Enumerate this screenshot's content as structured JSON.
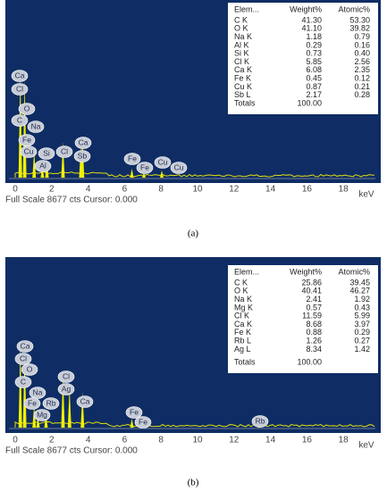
{
  "panels": [
    {
      "caption": "(a)",
      "table": {
        "header": [
          "Elem...",
          "Weight%",
          "Atomic%"
        ],
        "rows": [
          [
            "C K",
            "41.30",
            "53.30"
          ],
          [
            "O K",
            "41.10",
            "39.82"
          ],
          [
            "Na K",
            "1.18",
            "0.79"
          ],
          [
            "Al K",
            "0.29",
            "0.16"
          ],
          [
            "Si K",
            "0.73",
            "0.40"
          ],
          [
            "Cl K",
            "5.85",
            "2.56"
          ],
          [
            "Ca K",
            "6.08",
            "2.35"
          ],
          [
            "Fe K",
            "0.45",
            "0.12"
          ],
          [
            "Cu K",
            "0.87",
            "0.21"
          ],
          [
            "Sb L",
            "2.17",
            "0.28"
          ]
        ],
        "totals": [
          "Totals",
          "100.00"
        ]
      },
      "peak_labels": [
        "Ca",
        "Cl",
        "O",
        "C",
        "Na",
        "Fe",
        "Cu",
        "Si",
        "Al",
        "Cl",
        "Ca",
        "Sb",
        "Fe",
        "Fe",
        "Cu",
        "Cu"
      ],
      "x_ticks": [
        "0",
        "2",
        "4",
        "6",
        "8",
        "10",
        "12",
        "14",
        "16",
        "18"
      ],
      "x_unit": "keV",
      "status": "Full Scale 8677 cts Cursor: 0.000"
    },
    {
      "caption": "(b)",
      "table": {
        "header": [
          "Elem...",
          "Weight%",
          "Atomic%"
        ],
        "rows": [
          [
            "C K",
            "25.86",
            "39.45"
          ],
          [
            "O K",
            "40.41",
            "46.27"
          ],
          [
            "Na K",
            "2.41",
            "1.92"
          ],
          [
            "Mg K",
            "0.57",
            "0.43"
          ],
          [
            "Cl K",
            "11.59",
            "5.99"
          ],
          [
            "Ca K",
            "8.68",
            "3.97"
          ],
          [
            "Fe K",
            "0.88",
            "0.29"
          ],
          [
            "Rb L",
            "1.26",
            "0.27"
          ],
          [
            "Ag L",
            "8.34",
            "1.42"
          ]
        ],
        "totals": [
          "Totals",
          "100.00"
        ]
      },
      "peak_labels": [
        "Ca",
        "Cl",
        "O",
        "C",
        "Na",
        "Fe",
        "Mg",
        "Rb",
        "Cl",
        "Ag",
        "Ca",
        "Fe",
        "Fe",
        "Rb"
      ],
      "x_ticks": [
        "0",
        "2",
        "4",
        "6",
        "8",
        "10",
        "12",
        "14",
        "16",
        "18"
      ],
      "x_unit": "keV",
      "status": "Full Scale 8677 cts Cursor: 0.000"
    }
  ]
}
